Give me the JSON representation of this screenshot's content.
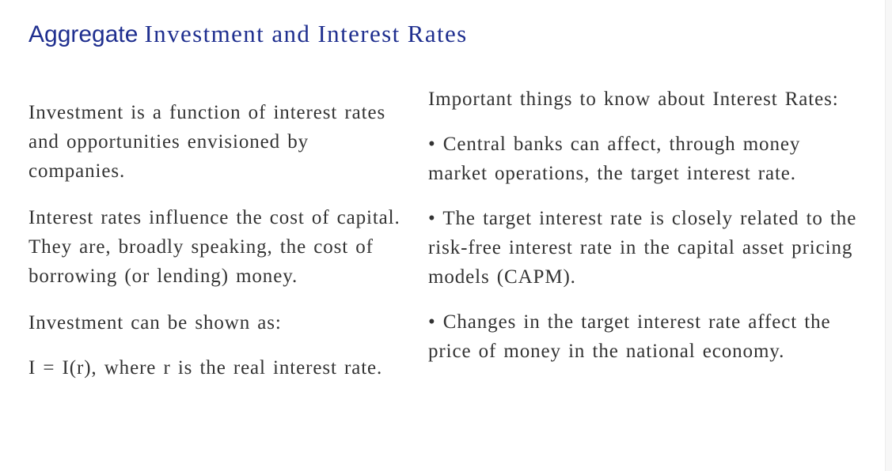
{
  "title": {
    "part1": "Aggregate",
    "part2": "Investment and Interest Rates"
  },
  "left_column": {
    "paragraphs": [
      "Investment is a function of interest rates and opportunities envisioned by companies.",
      "Interest rates influence the cost of capital. They are, broadly speaking, the cost of borrowing (or lending) money.",
      "Investment can be shown as:",
      "I = I(r), where r is the real interest rate."
    ]
  },
  "right_column": {
    "heading": "Important things to know about Interest Rates:",
    "bullets": [
      "• Central banks can affect, through money market operations, the target interest rate.",
      "• The target interest rate is closely related to the risk-free interest rate in the capital asset pricing models (CAPM).",
      "• Changes in the target interest rate affect the price of money in the national economy."
    ]
  }
}
